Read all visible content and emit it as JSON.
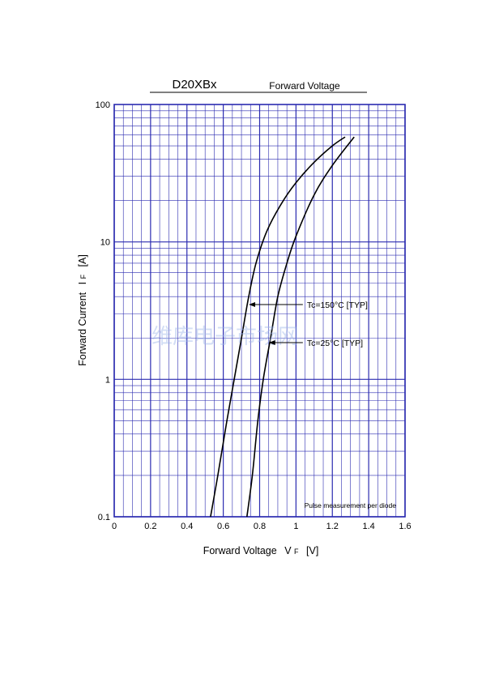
{
  "chart_data": {
    "type": "line",
    "title": "D20XBx",
    "subtitle": "Forward Voltage",
    "xlabel": "Forward Voltage",
    "xlabel_symbol": "V",
    "xlabel_sub": "F",
    "xlabel_unit": "[V]",
    "ylabel": "Forward Current",
    "ylabel_symbol": "I",
    "ylabel_sub": "F",
    "ylabel_unit": "[A]",
    "xlim": [
      0,
      1.6
    ],
    "ylim": [
      0.1,
      100
    ],
    "yscale": "log",
    "x_ticks": [
      0,
      0.2,
      0.4,
      0.6,
      0.8,
      1,
      1.2,
      1.4,
      1.6
    ],
    "x_tick_labels": [
      "0",
      "0.2",
      "0.4",
      "0.6",
      "0.8",
      "1",
      "1.2",
      "1.4",
      "1.6"
    ],
    "y_ticks": [
      0.1,
      1,
      10,
      100
    ],
    "y_tick_labels": [
      "0.1",
      "1",
      "10",
      "100"
    ],
    "grid": true,
    "grid_color": "#2b2bb0",
    "series": [
      {
        "name": "Tc=150°C [TYP]",
        "color": "#000000",
        "x": [
          0.53,
          0.57,
          0.62,
          0.66,
          0.7,
          0.74,
          0.78,
          0.84,
          0.92,
          1.0,
          1.1,
          1.2,
          1.27
        ],
        "y": [
          0.1,
          0.2,
          0.5,
          1.0,
          2.0,
          4.0,
          7.0,
          12.0,
          19.0,
          27.0,
          38.0,
          50.0,
          58.0
        ]
      },
      {
        "name": "Tc=25°C [TYP]",
        "color": "#000000",
        "x": [
          0.73,
          0.76,
          0.79,
          0.82,
          0.86,
          0.9,
          0.95,
          1.0,
          1.1,
          1.2,
          1.32
        ],
        "y": [
          0.1,
          0.2,
          0.5,
          1.0,
          2.0,
          4.0,
          7.0,
          11.0,
          22.0,
          36.0,
          58.0
        ]
      }
    ],
    "annotations": [
      {
        "text": "Tc=150°C [TYP]",
        "arrow_to_x": 0.74,
        "arrow_to_y": 3.5,
        "label_x": 1.06,
        "label_y": 3.5
      },
      {
        "text": "Tc=25°C [TYP]",
        "arrow_to_x": 0.85,
        "arrow_to_y": 1.85,
        "label_x": 1.06,
        "label_y": 1.85
      },
      {
        "text": "Pulse measurement per diode"
      }
    ],
    "watermark": "维库电子市场网"
  }
}
